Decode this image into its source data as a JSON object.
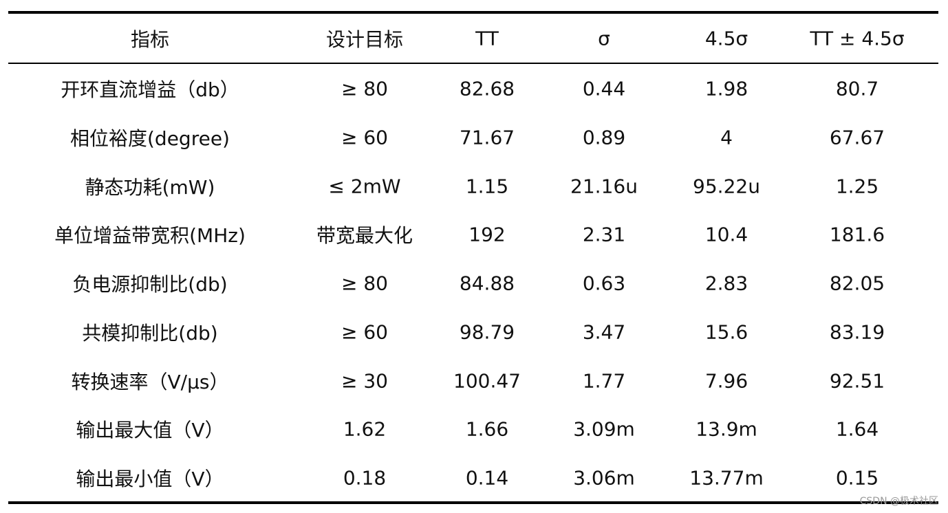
{
  "table": {
    "header": [
      "指标",
      "设计目标",
      "TT",
      "σ",
      "4.5σ",
      "TT ± 4.5σ"
    ],
    "rows": [
      [
        "开环直流增益（db）",
        "≥ 80",
        "82.68",
        "0.44",
        "1.98",
        "80.7"
      ],
      [
        "相位裕度(degree)",
        "≥ 60",
        "71.67",
        "0.89",
        "4",
        "67.67"
      ],
      [
        "静态功耗(mW)",
        "≤ 2mW",
        "1.15",
        "21.16u",
        "95.22u",
        "1.25"
      ],
      [
        "单位增益带宽积(MHz)",
        "带宽最大化",
        "192",
        "2.31",
        "10.4",
        "181.6"
      ],
      [
        "负电源抑制比(db)",
        "≥ 80",
        "84.88",
        "0.63",
        "2.83",
        "82.05"
      ],
      [
        "共模抑制比(db)",
        "≥ 60",
        "98.79",
        "3.47",
        "15.6",
        "83.19"
      ],
      [
        "转换速率（V/μs）",
        "≥ 30",
        "100.47",
        "1.77",
        "7.96",
        "92.51"
      ],
      [
        "输出最大值（V）",
        "1.62",
        "1.66",
        "3.09m",
        "13.9m",
        "1.64"
      ],
      [
        "输出最小值（V）",
        "0.18",
        "0.14",
        "3.06m",
        "13.77m",
        "0.15"
      ]
    ]
  },
  "watermark": "CSDN @极术社区"
}
